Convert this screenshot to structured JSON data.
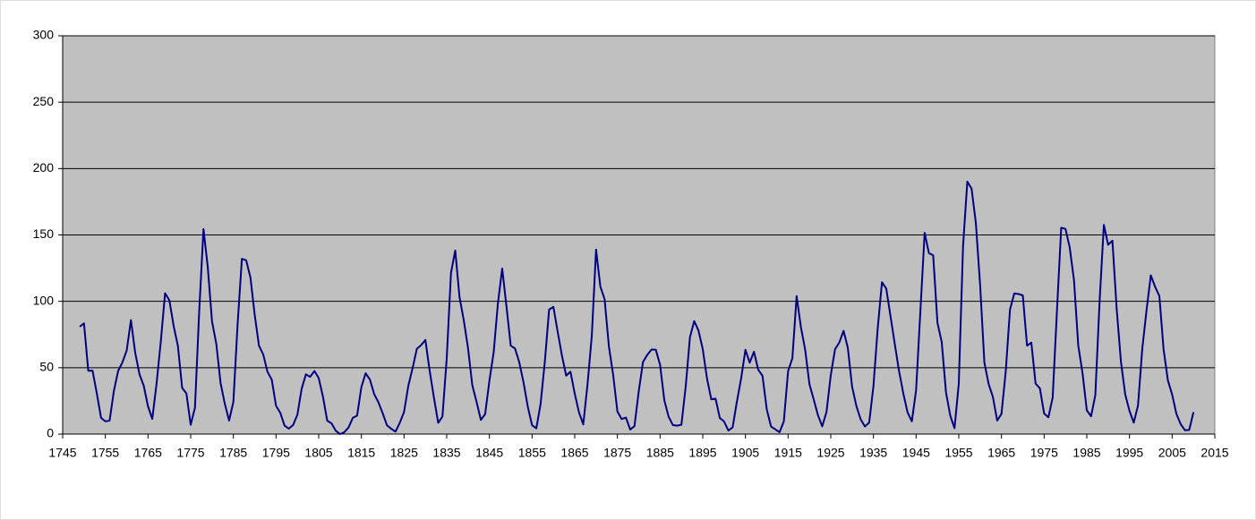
{
  "chart_data": {
    "type": "line",
    "x": [
      1749,
      1750,
      1751,
      1752,
      1753,
      1754,
      1755,
      1756,
      1757,
      1758,
      1759,
      1760,
      1761,
      1762,
      1763,
      1764,
      1765,
      1766,
      1767,
      1768,
      1769,
      1770,
      1771,
      1772,
      1773,
      1774,
      1775,
      1776,
      1777,
      1778,
      1779,
      1780,
      1781,
      1782,
      1783,
      1784,
      1785,
      1786,
      1787,
      1788,
      1789,
      1790,
      1791,
      1792,
      1793,
      1794,
      1795,
      1796,
      1797,
      1798,
      1799,
      1800,
      1801,
      1802,
      1803,
      1804,
      1805,
      1806,
      1807,
      1808,
      1809,
      1810,
      1811,
      1812,
      1813,
      1814,
      1815,
      1816,
      1817,
      1818,
      1819,
      1820,
      1821,
      1822,
      1823,
      1824,
      1825,
      1826,
      1827,
      1828,
      1829,
      1830,
      1831,
      1832,
      1833,
      1834,
      1835,
      1836,
      1837,
      1838,
      1839,
      1840,
      1841,
      1842,
      1843,
      1844,
      1845,
      1846,
      1847,
      1848,
      1849,
      1850,
      1851,
      1852,
      1853,
      1854,
      1855,
      1856,
      1857,
      1858,
      1859,
      1860,
      1861,
      1862,
      1863,
      1864,
      1865,
      1866,
      1867,
      1868,
      1869,
      1870,
      1871,
      1872,
      1873,
      1874,
      1875,
      1876,
      1877,
      1878,
      1879,
      1880,
      1881,
      1882,
      1883,
      1884,
      1885,
      1886,
      1887,
      1888,
      1889,
      1890,
      1891,
      1892,
      1893,
      1894,
      1895,
      1896,
      1897,
      1898,
      1899,
      1900,
      1901,
      1902,
      1903,
      1904,
      1905,
      1906,
      1907,
      1908,
      1909,
      1910,
      1911,
      1912,
      1913,
      1914,
      1915,
      1916,
      1917,
      1918,
      1919,
      1920,
      1921,
      1922,
      1923,
      1924,
      1925,
      1926,
      1927,
      1928,
      1929,
      1930,
      1931,
      1932,
      1933,
      1934,
      1935,
      1936,
      1937,
      1938,
      1939,
      1940,
      1941,
      1942,
      1943,
      1944,
      1945,
      1946,
      1947,
      1948,
      1949,
      1950,
      1951,
      1952,
      1953,
      1954,
      1955,
      1956,
      1957,
      1958,
      1959,
      1960,
      1961,
      1962,
      1963,
      1964,
      1965,
      1966,
      1967,
      1968,
      1969,
      1970,
      1971,
      1972,
      1973,
      1974,
      1975,
      1976,
      1977,
      1978,
      1979,
      1980,
      1981,
      1982,
      1983,
      1984,
      1985,
      1986,
      1987,
      1988,
      1989,
      1990,
      1991,
      1992,
      1993,
      1994,
      1995,
      1996,
      1997,
      1998,
      1999,
      2000,
      2001,
      2002,
      2003,
      2004,
      2005,
      2006,
      2007,
      2008,
      2009,
      2010
    ],
    "series": [
      {
        "color": "#000080",
        "values": [
          80.9,
          83.4,
          47.7,
          47.8,
          30.7,
          12.2,
          9.6,
          10.2,
          32.4,
          47.6,
          54.0,
          62.9,
          85.9,
          61.2,
          45.1,
          36.4,
          20.9,
          11.4,
          37.8,
          69.8,
          106.1,
          100.8,
          81.6,
          66.5,
          34.8,
          30.6,
          7.0,
          19.8,
          92.5,
          154.4,
          125.9,
          84.8,
          68.1,
          38.5,
          22.8,
          10.2,
          24.1,
          82.9,
          132.0,
          130.9,
          118.1,
          89.9,
          66.6,
          60.0,
          46.9,
          41.0,
          21.3,
          16.0,
          6.4,
          4.1,
          6.8,
          14.5,
          34.0,
          45.0,
          43.1,
          47.5,
          42.2,
          28.1,
          10.1,
          8.1,
          2.5,
          0.0,
          1.4,
          5.0,
          12.2,
          13.9,
          35.4,
          45.8,
          41.1,
          30.1,
          23.9,
          15.6,
          6.6,
          4.0,
          1.8,
          8.5,
          16.6,
          36.3,
          49.6,
          64.2,
          67.0,
          70.9,
          47.8,
          27.5,
          8.5,
          13.2,
          56.9,
          121.5,
          138.3,
          103.2,
          85.7,
          64.6,
          36.7,
          24.2,
          10.7,
          15.0,
          40.1,
          61.5,
          98.5,
          124.7,
          96.3,
          66.6,
          64.5,
          54.1,
          39.0,
          20.6,
          6.7,
          4.3,
          22.7,
          54.8,
          93.8,
          95.8,
          77.2,
          59.1,
          44.0,
          47.0,
          30.5,
          16.3,
          7.3,
          37.6,
          74.0,
          139.0,
          111.2,
          101.6,
          66.2,
          44.7,
          17.0,
          11.3,
          12.4,
          3.4,
          6.0,
          32.3,
          54.3,
          59.7,
          63.7,
          63.5,
          52.2,
          25.4,
          13.1,
          6.8,
          6.3,
          7.1,
          35.6,
          73.0,
          85.1,
          78.0,
          64.0,
          41.8,
          26.2,
          26.7,
          12.1,
          9.5,
          2.7,
          5.0,
          24.4,
          42.0,
          63.5,
          53.8,
          62.0,
          48.5,
          43.9,
          18.6,
          5.7,
          3.6,
          1.4,
          9.6,
          47.4,
          57.1,
          103.9,
          80.6,
          63.6,
          37.6,
          26.1,
          14.2,
          5.8,
          16.7,
          44.3,
          63.9,
          69.0,
          77.8,
          64.9,
          35.7,
          21.2,
          11.1,
          5.7,
          8.7,
          36.1,
          79.7,
          114.4,
          109.6,
          88.8,
          67.8,
          47.5,
          30.6,
          16.3,
          9.6,
          33.2,
          92.6,
          151.6,
          136.3,
          134.7,
          83.9,
          69.4,
          31.5,
          13.9,
          4.4,
          38.0,
          141.7,
          190.2,
          184.8,
          159.0,
          112.3,
          53.9,
          37.6,
          27.9,
          10.2,
          15.1,
          47.0,
          93.8,
          105.9,
          105.5,
          104.5,
          66.6,
          68.9,
          38.0,
          34.5,
          15.5,
          12.6,
          27.5,
          92.5,
          155.4,
          154.6,
          140.5,
          115.9,
          66.6,
          45.9,
          17.9,
          13.4,
          29.4,
          100.2,
          157.6,
          142.6,
          145.7,
          94.3,
          54.6,
          29.9,
          17.5,
          8.6,
          21.5,
          64.3,
          93.3,
          119.6,
          111.0,
          104.0,
          63.7,
          40.4,
          29.8,
          15.2,
          7.5,
          2.9,
          3.1,
          16.5
        ]
      }
    ],
    "xlim": [
      1745,
      2015
    ],
    "xticks": [
      1745,
      1755,
      1765,
      1775,
      1785,
      1795,
      1805,
      1815,
      1825,
      1835,
      1845,
      1855,
      1865,
      1875,
      1885,
      1895,
      1905,
      1915,
      1925,
      1935,
      1945,
      1955,
      1965,
      1975,
      1985,
      1995,
      2005,
      2015
    ],
    "ylim": [
      0,
      300
    ],
    "yticks": [
      0,
      50,
      100,
      150,
      200,
      250,
      300
    ],
    "grid": true,
    "background": "#c0c0c0"
  }
}
